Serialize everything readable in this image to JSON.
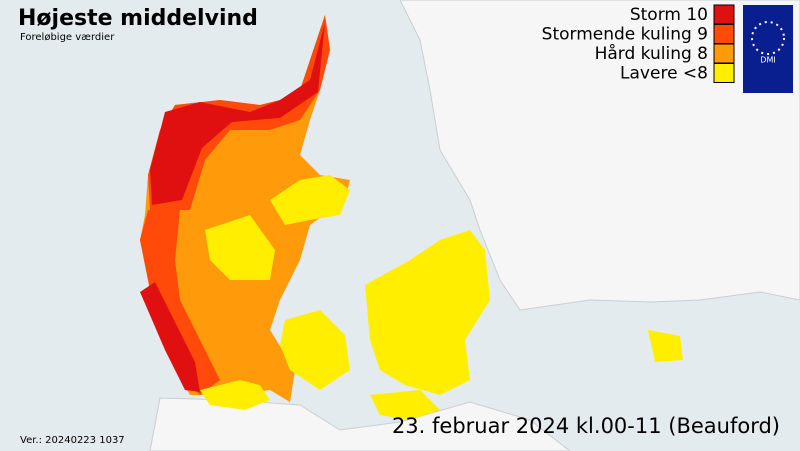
{
  "header": {
    "title": "Højeste middelvind",
    "subtitle": "Foreløbige værdier"
  },
  "legend": [
    {
      "label": "Storm 10",
      "color": "#e01010"
    },
    {
      "label": "Stormende kuling 9",
      "color": "#ff4a0a"
    },
    {
      "label": "Hård kuling 8",
      "color": "#ff9a0a"
    },
    {
      "label": "Lavere <8",
      "color": "#ffee00"
    }
  ],
  "logo": "DMI",
  "footer": {
    "date": "23. februar 2024 kl.00-11 (Beauford)",
    "version": "Ver.: 20240223 1037"
  }
}
